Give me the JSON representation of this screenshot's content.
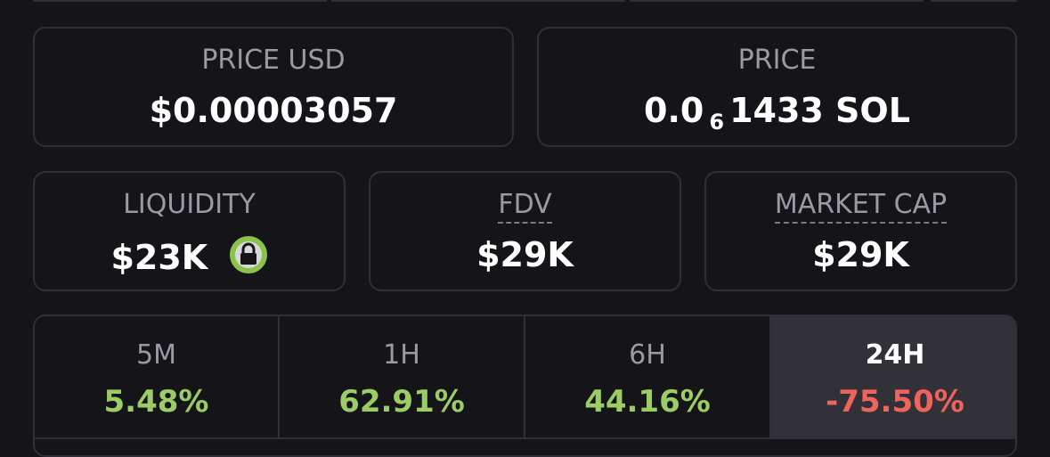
{
  "price_usd": {
    "label": "PRICE USD",
    "value": "$0.00003057"
  },
  "price_native": {
    "label": "PRICE",
    "value_prefix": "0.0",
    "value_zeros": "6",
    "value_rest": "1433 SOL"
  },
  "stats": [
    {
      "label": "LIQUIDITY",
      "value": "$23K"
    },
    {
      "label": "FDV",
      "value": "$29K"
    },
    {
      "label": "MARKET CAP",
      "value": "$29K"
    }
  ],
  "tabs": [
    {
      "label": "5M",
      "value": "5.48%"
    },
    {
      "label": "1H",
      "value": "62.91%"
    },
    {
      "label": "6H",
      "value": "44.16%"
    },
    {
      "label": "24H",
      "value": "-75.50%"
    }
  ]
}
